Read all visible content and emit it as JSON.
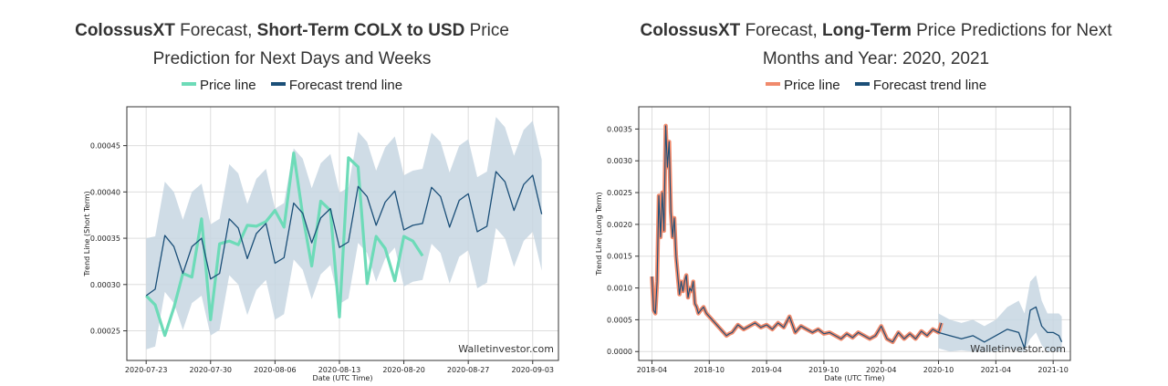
{
  "colors": {
    "price_line_short": "#6ddbb8",
    "price_line_long": "#f08a6c",
    "trend_line": "#1b4f78",
    "band_fill": "#c7d6e2",
    "grid": "#dddddd"
  },
  "watermark": "Walletinvestor.com",
  "chart_data": [
    {
      "type": "line",
      "title_parts": [
        {
          "text": "ColossusXT",
          "bold": true
        },
        {
          "text": " Forecast, ",
          "bold": false
        },
        {
          "text": "Short-Term COLX to USD",
          "bold": true
        },
        {
          "text": " Price",
          "bold": false
        },
        {
          "text": "Prediction for Next Days and Weeks",
          "bold": false,
          "newline": true
        }
      ],
      "legend": [
        "Price line",
        "Forecast trend line"
      ],
      "legend_placement": "top-center",
      "xlabel": "Date (UTC Time)",
      "ylabel": "Trend Line (Short Term)",
      "x_ticks": [
        "2020-07-23",
        "2020-07-30",
        "2020-08-06",
        "2020-08-13",
        "2020-08-20",
        "2020-08-27",
        "2020-09-03"
      ],
      "y_ticks": [
        "0.00025",
        "0.00030",
        "0.00035",
        "0.00040",
        "0.00045"
      ],
      "xlim": [
        -0.3,
        6.4
      ],
      "ylim": [
        0.000218,
        0.000492
      ],
      "grid": true,
      "series": [
        {
          "name": "Price line",
          "x": [
            0,
            0.14,
            0.29,
            0.43,
            0.57,
            0.71,
            0.86,
            1.0,
            1.14,
            1.29,
            1.43,
            1.57,
            1.71,
            1.86,
            2.0,
            2.14,
            2.29,
            2.43,
            2.57,
            2.71,
            2.86,
            3.0,
            3.14,
            3.29,
            3.43,
            3.57,
            3.71,
            3.86,
            4.0,
            4.14,
            4.29
          ],
          "y": [
            0.000288,
            0.000278,
            0.000245,
            0.000275,
            0.000312,
            0.000308,
            0.000371,
            0.000262,
            0.000344,
            0.000347,
            0.000343,
            0.000364,
            0.000363,
            0.000368,
            0.00038,
            0.000362,
            0.000442,
            0.000375,
            0.00032,
            0.00039,
            0.00038,
            0.000265,
            0.000437,
            0.000427,
            0.000301,
            0.000352,
            0.000339,
            0.000304,
            0.000352,
            0.000347,
            0.000331
          ]
        },
        {
          "name": "Forecast trend line",
          "x": [
            0,
            0.14,
            0.29,
            0.43,
            0.57,
            0.71,
            0.86,
            1.0,
            1.14,
            1.29,
            1.43,
            1.57,
            1.71,
            1.86,
            2.0,
            2.14,
            2.29,
            2.43,
            2.57,
            2.71,
            2.86,
            3.0,
            3.14,
            3.29,
            3.43,
            3.57,
            3.71,
            3.86,
            4.0,
            4.14,
            4.29,
            4.43,
            4.57,
            4.71,
            4.86,
            5.0,
            5.14,
            5.29,
            5.43,
            5.57,
            5.71,
            5.86,
            6.0,
            6.14
          ],
          "y": [
            0.000288,
            0.000295,
            0.000353,
            0.000341,
            0.000312,
            0.000341,
            0.00035,
            0.000306,
            0.000312,
            0.000371,
            0.000361,
            0.000328,
            0.000355,
            0.000366,
            0.000323,
            0.000329,
            0.000388,
            0.000377,
            0.000345,
            0.000372,
            0.000382,
            0.00034,
            0.000346,
            0.000406,
            0.000395,
            0.000364,
            0.000389,
            0.000401,
            0.000359,
            0.000364,
            0.000366,
            0.000405,
            0.000395,
            0.000362,
            0.000391,
            0.000398,
            0.000357,
            0.000363,
            0.000422,
            0.000411,
            0.00038,
            0.000408,
            0.000418,
            0.000376
          ],
          "lower": [
            0.00023,
            0.000233,
            0.000292,
            0.00028,
            0.000251,
            0.00028,
            0.000288,
            0.000245,
            0.000251,
            0.00031,
            0.0003,
            0.000267,
            0.000294,
            0.000305,
            0.000262,
            0.000268,
            0.000327,
            0.000316,
            0.000284,
            0.000311,
            0.000321,
            0.000279,
            0.000285,
            0.000345,
            0.000334,
            0.000303,
            0.000328,
            0.00034,
            0.000298,
            0.000303,
            0.000305,
            0.000344,
            0.000334,
            0.000301,
            0.00033,
            0.000337,
            0.000296,
            0.000302,
            0.000361,
            0.00035,
            0.000319,
            0.000347,
            0.000357,
            0.000315
          ],
          "upper": [
            0.00035,
            0.000352,
            0.000411,
            0.0004,
            0.00037,
            0.0004,
            0.000409,
            0.000365,
            0.000371,
            0.00043,
            0.00042,
            0.000387,
            0.000414,
            0.000425,
            0.000382,
            0.000388,
            0.000447,
            0.000436,
            0.000404,
            0.000431,
            0.000441,
            0.000399,
            0.000405,
            0.000465,
            0.000454,
            0.000423,
            0.000448,
            0.00046,
            0.000418,
            0.000423,
            0.000425,
            0.000464,
            0.000454,
            0.000421,
            0.00045,
            0.000457,
            0.000416,
            0.000422,
            0.000481,
            0.00047,
            0.000439,
            0.000467,
            0.000477,
            0.000435
          ]
        }
      ]
    },
    {
      "type": "line",
      "title_parts": [
        {
          "text": "ColossusXT",
          "bold": true
        },
        {
          "text": " Forecast, ",
          "bold": false
        },
        {
          "text": "Long-Term",
          "bold": true
        },
        {
          "text": " Price Predictions for Next",
          "bold": false
        },
        {
          "text": "Months and Year: 2020, 2021",
          "bold": false,
          "newline": true
        }
      ],
      "legend": [
        "Price line",
        "Forecast trend line"
      ],
      "legend_placement": "top-center",
      "xlabel": "Date (UTC Time)",
      "ylabel": "Trend Line (Long Term)",
      "x_ticks": [
        "2018-04",
        "2018-10",
        "2019-04",
        "2019-10",
        "2020-04",
        "2020-10",
        "2021-04",
        "2021-10"
      ],
      "y_ticks": [
        "0.0000",
        "0.0005",
        "0.0010",
        "0.0015",
        "0.0020",
        "0.0025",
        "0.0030",
        "0.0035"
      ],
      "xlim": [
        -0.23,
        7.3
      ],
      "ylim": [
        -0.00014,
        0.00385
      ],
      "grid": true,
      "series": [
        {
          "name": "Price line",
          "x": [
            0,
            0.03,
            0.06,
            0.09,
            0.12,
            0.15,
            0.18,
            0.21,
            0.24,
            0.27,
            0.3,
            0.33,
            0.36,
            0.39,
            0.42,
            0.45,
            0.48,
            0.51,
            0.54,
            0.57,
            0.6,
            0.63,
            0.66,
            0.69,
            0.72,
            0.75,
            0.78,
            0.81,
            0.85,
            0.9,
            0.95,
            1.0,
            1.05,
            1.1,
            1.15,
            1.2,
            1.25,
            1.3,
            1.35,
            1.4,
            1.5,
            1.6,
            1.7,
            1.8,
            1.9,
            2.0,
            2.1,
            2.2,
            2.3,
            2.4,
            2.5,
            2.6,
            2.7,
            2.8,
            2.9,
            3.0,
            3.1,
            3.2,
            3.3,
            3.4,
            3.5,
            3.6,
            3.7,
            3.8,
            3.9,
            4.0,
            4.1,
            4.2,
            4.3,
            4.4,
            4.5,
            4.6,
            4.7,
            4.8,
            4.9,
            5.0,
            5.05
          ],
          "y": [
            0.00118,
            0.00065,
            0.0006,
            0.0011,
            0.00245,
            0.0018,
            0.0025,
            0.0019,
            0.00355,
            0.0029,
            0.0033,
            0.0022,
            0.0018,
            0.0021,
            0.0015,
            0.0012,
            0.0009,
            0.0011,
            0.00095,
            0.0011,
            0.0012,
            0.00085,
            0.001,
            0.00095,
            0.0011,
            0.00075,
            0.0007,
            0.0006,
            0.00065,
            0.0007,
            0.0006,
            0.00055,
            0.0005,
            0.00045,
            0.0004,
            0.00035,
            0.0003,
            0.00025,
            0.00028,
            0.0003,
            0.00042,
            0.00035,
            0.0004,
            0.00045,
            0.00038,
            0.00042,
            0.00035,
            0.00045,
            0.00038,
            0.00055,
            0.0003,
            0.0004,
            0.00035,
            0.0003,
            0.00035,
            0.00028,
            0.0003,
            0.00025,
            0.0002,
            0.00028,
            0.00022,
            0.0003,
            0.00025,
            0.0002,
            0.00025,
            0.0004,
            0.0002,
            0.00015,
            0.0003,
            0.0002,
            0.00028,
            0.0002,
            0.00032,
            0.00025,
            0.00035,
            0.0003,
            0.00045
          ]
        },
        {
          "name": "Forecast trend line",
          "x": [
            5.0,
            5.2,
            5.4,
            5.6,
            5.8,
            6.0,
            6.2,
            6.4,
            6.5,
            6.6,
            6.7,
            6.8,
            6.9,
            7.0,
            7.1,
            7.15
          ],
          "y": [
            0.0003,
            0.00025,
            0.0002,
            0.00025,
            0.00015,
            0.00025,
            0.00035,
            0.0003,
            5e-05,
            0.00065,
            0.0007,
            0.0004,
            0.0003,
            0.0003,
            0.00025,
            0.00015
          ],
          "lower": [
            5e-05,
            0.0,
            2e-05,
            0.0,
            0.0,
            0.0,
            5e-05,
            0.0,
            0.0,
            0.0002,
            0.0003,
            0.0001,
            0.0,
            0.0,
            0.0,
            0.0
          ],
          "upper": [
            0.0006,
            0.0005,
            0.00045,
            0.0005,
            0.0004,
            0.0005,
            0.0007,
            0.0008,
            0.0006,
            0.0011,
            0.0012,
            0.0008,
            0.0006,
            0.0006,
            0.0006,
            0.00055
          ]
        }
      ]
    }
  ]
}
